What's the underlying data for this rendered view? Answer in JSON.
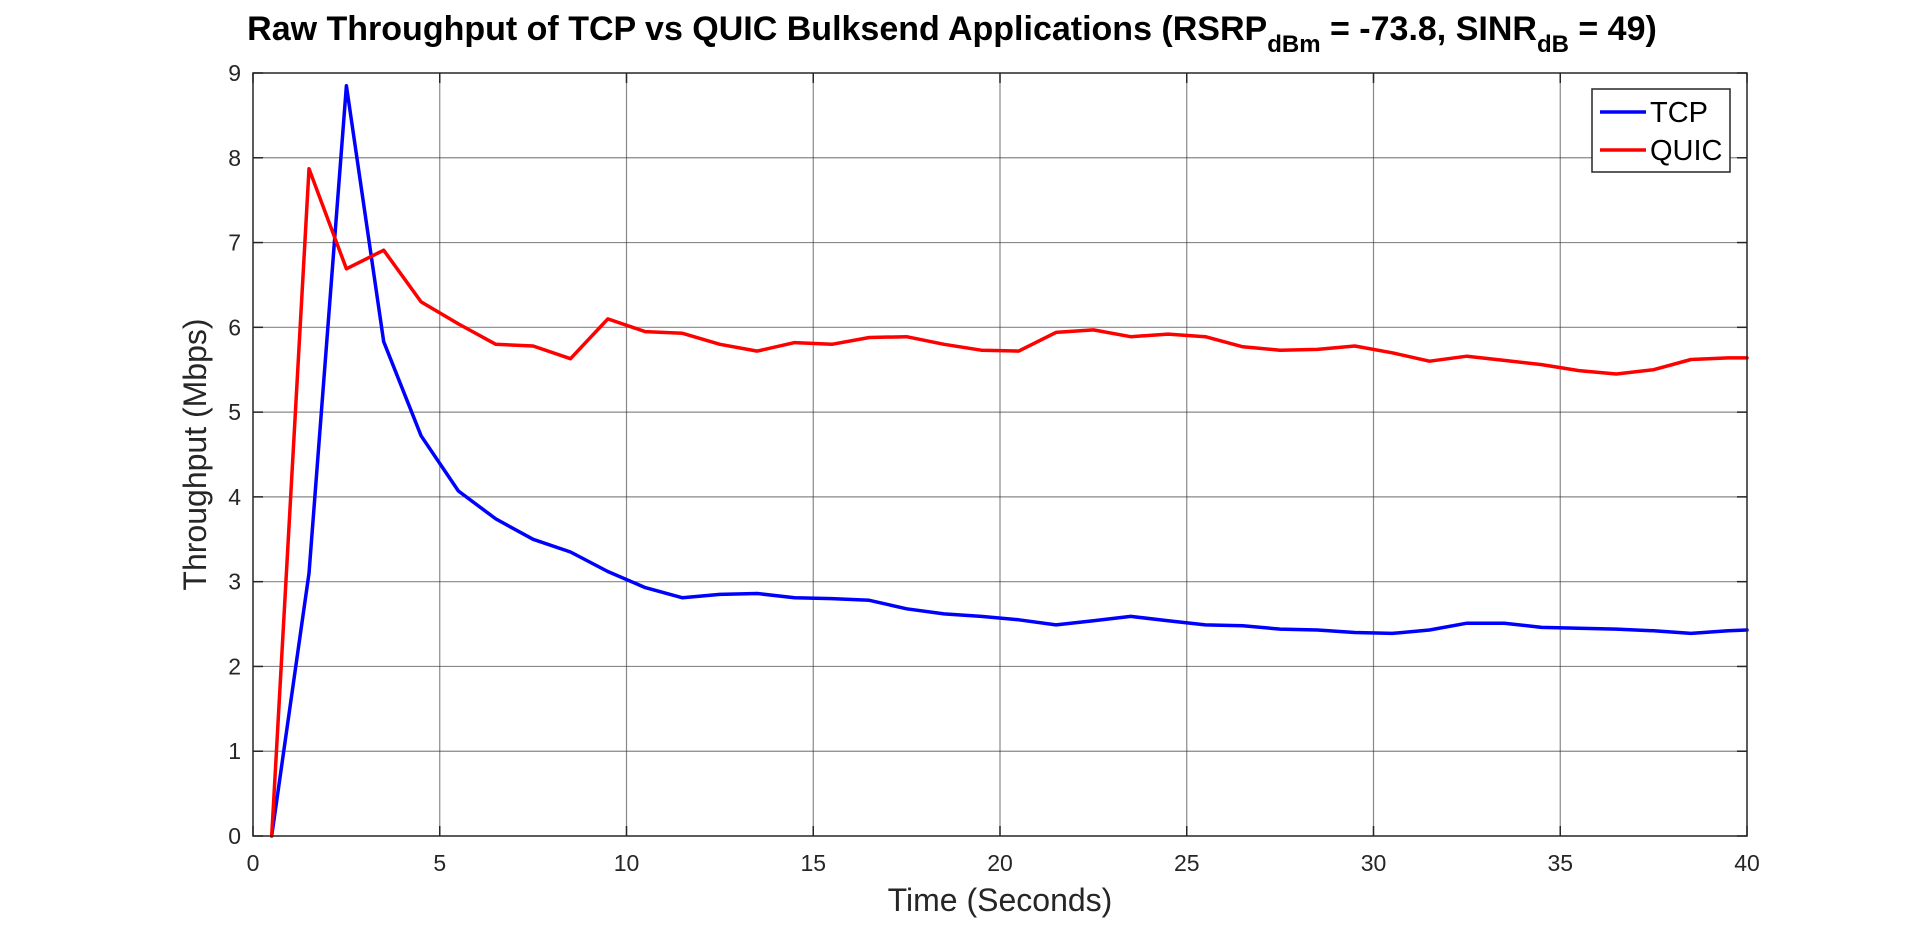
{
  "chart_data": {
    "type": "line",
    "title": {
      "part1": "Raw Throughput of TCP vs QUIC Bulksend Applications (RSRP",
      "sub1": "dBm",
      "part2": " = -73.8, SINR",
      "sub2": "dB",
      "part3": " = 49)"
    },
    "xlabel": "Time (Seconds)",
    "ylabel": "Throughput (Mbps)",
    "xlim": [
      0,
      40
    ],
    "ylim": [
      0,
      9
    ],
    "xticks": [
      0,
      5,
      10,
      15,
      20,
      25,
      30,
      35,
      40
    ],
    "yticks": [
      0,
      1,
      2,
      3,
      4,
      5,
      6,
      7,
      8,
      9
    ],
    "grid": true,
    "legend_position": "top-right",
    "x": [
      0.5,
      1.5,
      2.5,
      3.5,
      4.5,
      5.5,
      6.5,
      7.5,
      8.5,
      9.5,
      10.5,
      11.5,
      12.5,
      13.5,
      14.5,
      15.5,
      16.5,
      17.5,
      18.5,
      19.5,
      20.5,
      21.5,
      22.5,
      23.5,
      24.5,
      25.5,
      26.5,
      27.5,
      28.5,
      29.5,
      30.5,
      31.5,
      32.5,
      33.5,
      34.5,
      35.5,
      36.5,
      37.5,
      38.5,
      39.5,
      40
    ],
    "series": [
      {
        "name": "TCP",
        "color": "#0000ff",
        "values": [
          0,
          3.1,
          8.85,
          5.83,
          4.72,
          4.07,
          3.74,
          3.5,
          3.35,
          3.12,
          2.93,
          2.81,
          2.85,
          2.86,
          2.81,
          2.8,
          2.78,
          2.68,
          2.62,
          2.59,
          2.55,
          2.49,
          2.54,
          2.59,
          2.54,
          2.49,
          2.48,
          2.44,
          2.43,
          2.4,
          2.39,
          2.43,
          2.51,
          2.51,
          2.46,
          2.45,
          2.44,
          2.42,
          2.39,
          2.42,
          2.43
        ]
      },
      {
        "name": "QUIC",
        "color": "#ff0000",
        "values": [
          0,
          7.87,
          6.69,
          6.91,
          6.3,
          6.04,
          5.8,
          5.78,
          5.63,
          6.1,
          5.95,
          5.93,
          5.8,
          5.72,
          5.82,
          5.8,
          5.88,
          5.89,
          5.8,
          5.73,
          5.72,
          5.94,
          5.97,
          5.89,
          5.92,
          5.89,
          5.77,
          5.73,
          5.74,
          5.78,
          5.7,
          5.6,
          5.66,
          5.61,
          5.56,
          5.49,
          5.45,
          5.5,
          5.62,
          5.64,
          5.64
        ]
      }
    ]
  }
}
